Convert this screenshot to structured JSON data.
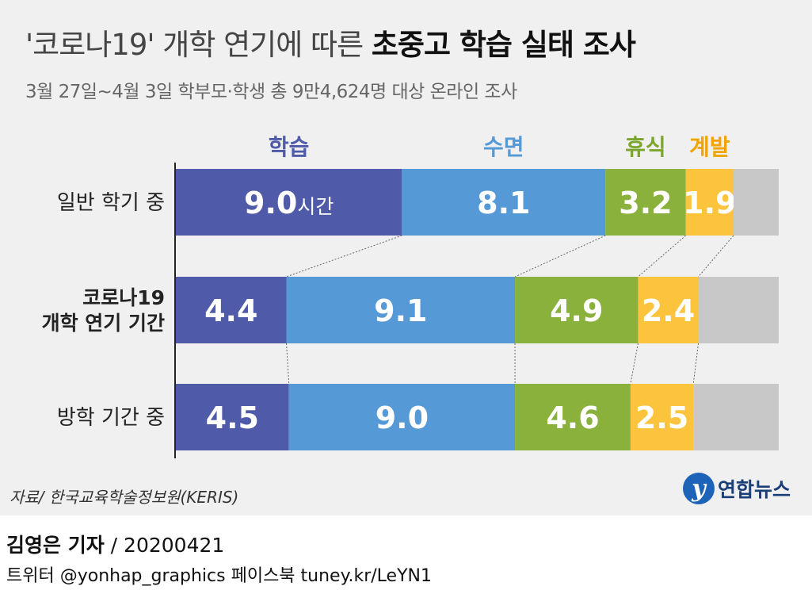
{
  "header": {
    "title_normal": "'코로나19' 개학 연기에 따른",
    "title_bold": "초중고 학습 실태 조사",
    "subtitle": "3월 27일~4월 3일 학부모·학생 총 9만4,624명 대상 온라인 조사"
  },
  "chart_data": {
    "type": "bar",
    "orientation": "horizontal-stacked",
    "categories": [
      "일반 학기 중",
      "코로나19 개학 연기 기간",
      "방학 기간 중"
    ],
    "category_lines": [
      [
        "일반 학기 중"
      ],
      [
        "코로나19",
        "개학 연기 기간"
      ],
      [
        "방학 기간 중"
      ]
    ],
    "series": [
      {
        "name": "학습",
        "values": [
          9.0,
          4.4,
          4.5
        ],
        "color": "#4f5aa8"
      },
      {
        "name": "수면",
        "values": [
          8.1,
          9.1,
          9.0
        ],
        "color": "#5599d6"
      },
      {
        "name": "휴식",
        "values": [
          3.2,
          4.9,
          4.6
        ],
        "color": "#8ab13b"
      },
      {
        "name": "계발",
        "values": [
          1.9,
          2.4,
          2.5
        ],
        "color": "#fcc33c"
      }
    ],
    "unit_label": "시간",
    "remainder_color": "#c8c8c8",
    "total_hours": 24,
    "legend_placement": "top",
    "label_colors": {
      "학습": "#4f5aa8",
      "수면": "#5599d6",
      "휴식": "#7ba52d",
      "계발": "#f0a400"
    }
  },
  "footer": {
    "source": "자료/ 한국교육학술정보원(KERIS)",
    "logo_text": "연합뉴스",
    "reporter_name": "김영은 기자",
    "reporter_date": " / 20200421",
    "social": "트위터 @yonhap_graphics  페이스북 tuney.kr/LeYN1"
  }
}
